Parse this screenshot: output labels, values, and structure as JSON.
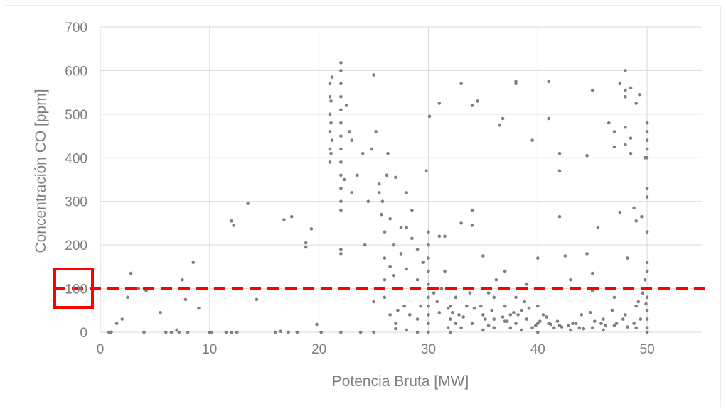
{
  "chart_data": {
    "type": "scatter",
    "title": "",
    "xlabel": "Potencia Bruta [MW]",
    "ylabel": "Concentración CO [ppm]",
    "xlim": [
      0,
      55
    ],
    "ylim": [
      0,
      700
    ],
    "x_ticks": [
      0,
      10,
      20,
      30,
      40,
      50
    ],
    "y_ticks": [
      0,
      100,
      200,
      300,
      400,
      500,
      600,
      700
    ],
    "grid": true,
    "marker_color": "#7f7f7f",
    "threshold_line": {
      "y": 100,
      "color": "#ff0000",
      "style": "dashed"
    },
    "highlighted_tick": {
      "label": "100",
      "color": "#ff0000"
    },
    "points": [
      [
        0.8,
        0
      ],
      [
        1,
        0
      ],
      [
        1.5,
        20
      ],
      [
        2,
        30
      ],
      [
        2.5,
        80
      ],
      [
        2.8,
        135
      ],
      [
        3,
        100
      ],
      [
        3.5,
        100
      ],
      [
        4,
        0
      ],
      [
        4.2,
        95
      ],
      [
        5.5,
        45
      ],
      [
        6,
        0
      ],
      [
        6.5,
        0
      ],
      [
        7,
        5
      ],
      [
        7.2,
        0
      ],
      [
        7.5,
        120
      ],
      [
        7.8,
        75
      ],
      [
        8,
        0
      ],
      [
        8.5,
        160
      ],
      [
        9,
        55
      ],
      [
        10,
        0
      ],
      [
        10.2,
        0
      ],
      [
        11.5,
        0
      ],
      [
        12,
        0
      ],
      [
        12,
        255
      ],
      [
        12.2,
        245
      ],
      [
        12.5,
        0
      ],
      [
        13.5,
        295
      ],
      [
        14.3,
        75
      ],
      [
        16,
        0
      ],
      [
        16.5,
        2
      ],
      [
        16.8,
        258
      ],
      [
        17.2,
        0
      ],
      [
        17.5,
        265
      ],
      [
        18,
        0
      ],
      [
        18.8,
        195
      ],
      [
        18.8,
        205
      ],
      [
        19.3,
        237
      ],
      [
        19.8,
        18
      ],
      [
        20.2,
        0
      ],
      [
        21,
        390
      ],
      [
        21,
        420
      ],
      [
        21,
        460
      ],
      [
        21,
        500
      ],
      [
        21,
        540
      ],
      [
        21,
        570
      ],
      [
        21.1,
        410
      ],
      [
        21.1,
        480
      ],
      [
        21.1,
        530
      ],
      [
        21.2,
        440
      ],
      [
        21.2,
        585
      ],
      [
        22,
        180
      ],
      [
        22,
        190
      ],
      [
        22,
        280
      ],
      [
        22,
        300
      ],
      [
        22,
        330
      ],
      [
        22,
        360
      ],
      [
        22,
        390
      ],
      [
        22,
        420
      ],
      [
        22,
        450
      ],
      [
        22,
        480
      ],
      [
        22,
        510
      ],
      [
        22,
        540
      ],
      [
        22,
        570
      ],
      [
        22,
        618
      ],
      [
        22,
        600
      ],
      [
        22,
        0
      ],
      [
        22.3,
        350
      ],
      [
        22.5,
        520
      ],
      [
        22.8,
        460
      ],
      [
        23,
        440
      ],
      [
        23,
        320
      ],
      [
        23.5,
        360
      ],
      [
        24,
        410
      ],
      [
        24.5,
        300
      ],
      [
        24.8,
        420
      ],
      [
        25,
        590
      ],
      [
        25,
        0
      ],
      [
        25.2,
        460
      ],
      [
        25.5,
        340
      ],
      [
        25.5,
        320
      ],
      [
        25.8,
        300
      ],
      [
        26,
        230
      ],
      [
        26,
        170
      ],
      [
        26,
        120
      ],
      [
        26,
        80
      ],
      [
        26.2,
        360
      ],
      [
        26.3,
        410
      ],
      [
        26.5,
        260
      ],
      [
        26.5,
        150
      ],
      [
        26.8,
        200
      ],
      [
        27,
        355
      ],
      [
        27,
        100
      ],
      [
        27,
        20
      ],
      [
        27.5,
        240
      ],
      [
        27.5,
        180
      ],
      [
        27.8,
        60
      ],
      [
        28,
        240
      ],
      [
        28,
        145
      ],
      [
        28,
        320
      ],
      [
        28.3,
        40
      ],
      [
        28.5,
        215
      ],
      [
        28.5,
        280
      ],
      [
        29,
        190
      ],
      [
        29,
        120
      ],
      [
        29,
        30
      ],
      [
        29.5,
        160
      ],
      [
        29.8,
        370
      ],
      [
        30,
        230
      ],
      [
        30,
        200
      ],
      [
        30,
        170
      ],
      [
        30,
        140
      ],
      [
        30,
        110
      ],
      [
        30,
        80
      ],
      [
        30,
        60
      ],
      [
        30,
        40
      ],
      [
        30,
        20
      ],
      [
        30,
        0
      ],
      [
        30.1,
        495
      ],
      [
        30.5,
        90
      ],
      [
        31,
        45
      ],
      [
        31,
        220
      ],
      [
        31,
        525
      ],
      [
        31.5,
        220
      ],
      [
        31.5,
        140
      ],
      [
        31.8,
        10
      ],
      [
        32,
        0
      ],
      [
        32,
        100
      ],
      [
        32,
        60
      ],
      [
        32,
        30
      ],
      [
        32.5,
        80
      ],
      [
        32.5,
        20
      ],
      [
        33,
        570
      ],
      [
        33,
        250
      ],
      [
        33,
        10
      ],
      [
        33.5,
        60
      ],
      [
        34,
        245
      ],
      [
        34,
        520
      ],
      [
        34,
        280
      ],
      [
        34,
        20
      ],
      [
        34.5,
        530
      ],
      [
        35,
        175
      ],
      [
        35,
        40
      ],
      [
        35,
        5
      ],
      [
        35.5,
        90
      ],
      [
        35.5,
        15
      ],
      [
        36,
        80
      ],
      [
        36,
        30
      ],
      [
        36,
        10
      ],
      [
        36.5,
        475
      ],
      [
        36.8,
        490
      ],
      [
        37,
        140
      ],
      [
        37,
        60
      ],
      [
        37,
        25
      ],
      [
        37.5,
        40
      ],
      [
        37.5,
        10
      ],
      [
        38,
        570
      ],
      [
        38,
        575
      ],
      [
        38,
        80
      ],
      [
        38,
        20
      ],
      [
        38.5,
        50
      ],
      [
        38.5,
        5
      ],
      [
        39,
        110
      ],
      [
        39,
        30
      ],
      [
        39.5,
        440
      ],
      [
        39.5,
        10
      ],
      [
        40,
        100
      ],
      [
        40,
        60
      ],
      [
        40,
        170
      ],
      [
        40,
        20
      ],
      [
        40,
        0
      ],
      [
        40.5,
        40
      ],
      [
        41,
        490
      ],
      [
        41,
        575
      ],
      [
        41,
        20
      ],
      [
        41.5,
        10
      ],
      [
        42,
        265
      ],
      [
        42,
        410
      ],
      [
        42,
        370
      ],
      [
        42,
        15
      ],
      [
        42.5,
        175
      ],
      [
        43,
        5
      ],
      [
        43,
        120
      ],
      [
        43.5,
        20
      ],
      [
        44,
        40
      ],
      [
        44.5,
        405
      ],
      [
        44.5,
        180
      ],
      [
        45,
        555
      ],
      [
        45,
        135
      ],
      [
        45,
        95
      ],
      [
        45,
        10
      ],
      [
        45.5,
        240
      ],
      [
        46,
        30
      ],
      [
        46,
        5
      ],
      [
        46.5,
        480
      ],
      [
        47,
        425
      ],
      [
        47,
        460
      ],
      [
        47,
        80
      ],
      [
        47,
        15
      ],
      [
        47.5,
        570
      ],
      [
        47.5,
        275
      ],
      [
        48,
        600
      ],
      [
        48,
        555
      ],
      [
        48,
        540
      ],
      [
        48,
        470
      ],
      [
        48,
        430
      ],
      [
        48,
        40
      ],
      [
        48.2,
        170
      ],
      [
        48.5,
        560
      ],
      [
        48.5,
        445
      ],
      [
        48.5,
        410
      ],
      [
        48.8,
        285
      ],
      [
        49,
        525
      ],
      [
        49,
        255
      ],
      [
        49,
        60
      ],
      [
        49,
        10
      ],
      [
        49.3,
        545
      ],
      [
        49.5,
        265
      ],
      [
        49.8,
        400
      ],
      [
        49.8,
        120
      ],
      [
        50,
        480
      ],
      [
        50,
        460
      ],
      [
        50,
        440
      ],
      [
        50,
        420
      ],
      [
        50,
        400
      ],
      [
        50,
        330
      ],
      [
        50,
        310
      ],
      [
        50,
        230
      ],
      [
        50,
        160
      ],
      [
        50,
        140
      ],
      [
        50,
        80
      ],
      [
        50,
        50
      ],
      [
        50,
        30
      ],
      [
        50,
        10
      ],
      [
        50,
        0
      ],
      [
        29,
        0
      ],
      [
        28,
        5
      ],
      [
        27,
        8
      ],
      [
        26.5,
        40
      ],
      [
        25,
        70
      ],
      [
        23.8,
        0
      ],
      [
        24.2,
        200
      ],
      [
        25.7,
        270
      ],
      [
        26.8,
        130
      ],
      [
        27.2,
        50
      ],
      [
        28.8,
        100
      ],
      [
        29.3,
        60
      ],
      [
        31.2,
        100
      ],
      [
        32.8,
        40
      ],
      [
        33.8,
        90
      ],
      [
        34.8,
        60
      ],
      [
        35.8,
        50
      ],
      [
        36.2,
        120
      ],
      [
        37.8,
        45
      ],
      [
        38.8,
        70
      ],
      [
        39.2,
        55
      ],
      [
        40.8,
        35
      ],
      [
        41.8,
        25
      ],
      [
        42.8,
        15
      ],
      [
        43.8,
        10
      ],
      [
        44.8,
        45
      ],
      [
        45.8,
        20
      ],
      [
        46.8,
        50
      ],
      [
        47.8,
        30
      ],
      [
        48.8,
        20
      ],
      [
        49.2,
        70
      ],
      [
        49.6,
        90
      ],
      [
        49.9,
        65
      ],
      [
        30.8,
        70
      ],
      [
        31.8,
        55
      ],
      [
        32.2,
        45
      ],
      [
        33.2,
        35
      ],
      [
        34.2,
        55
      ],
      [
        35.2,
        30
      ],
      [
        36.8,
        35
      ],
      [
        37.2,
        25
      ],
      [
        38.2,
        40
      ],
      [
        39.8,
        15
      ],
      [
        40.2,
        25
      ],
      [
        41.2,
        18
      ],
      [
        42.2,
        12
      ],
      [
        43.2,
        20
      ],
      [
        44.2,
        8
      ],
      [
        45.2,
        25
      ],
      [
        46.2,
        15
      ],
      [
        47.2,
        20
      ],
      [
        48.2,
        12
      ],
      [
        49.4,
        30
      ]
    ]
  }
}
